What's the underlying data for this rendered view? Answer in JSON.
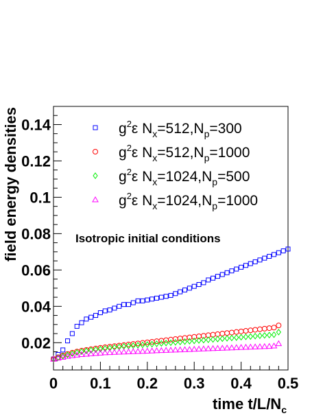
{
  "chart_data": {
    "type": "scatter",
    "xlabel": "time t/L/N",
    "xlabel_sub": "c",
    "ylabel": "field energy densities",
    "xlim": [
      0,
      0.5
    ],
    "ylim": [
      0.005,
      0.15
    ],
    "xticks": [
      "0",
      "0.1",
      "0.2",
      "0.3",
      "0.4",
      "0.5"
    ],
    "yticks": [
      "0.02",
      "0.04",
      "0.06",
      "0.08",
      "0.1",
      "0.12",
      "0.14"
    ],
    "annotation": "Isotropic initial conditions",
    "legend_position": "top",
    "series": [
      {
        "name": "g²ε N_x=512,N_p=300",
        "marker": "square",
        "color": "#0000ff",
        "lp": {
          "g": "g",
          "e": "ε N",
          "s1": "x",
          "m1": "=512,N",
          "s2": "p",
          "m2": "=300"
        },
        "x": [
          0.0,
          0.01,
          0.02,
          0.03,
          0.04,
          0.05,
          0.06,
          0.07,
          0.08,
          0.09,
          0.1,
          0.11,
          0.12,
          0.13,
          0.14,
          0.15,
          0.16,
          0.17,
          0.18,
          0.19,
          0.2,
          0.21,
          0.22,
          0.23,
          0.24,
          0.25,
          0.26,
          0.27,
          0.28,
          0.29,
          0.3,
          0.31,
          0.32,
          0.33,
          0.34,
          0.35,
          0.36,
          0.37,
          0.38,
          0.39,
          0.4,
          0.41,
          0.42,
          0.43,
          0.44,
          0.45,
          0.46,
          0.47,
          0.48,
          0.49,
          0.5
        ],
        "y": [
          0.011,
          0.0135,
          0.016,
          0.021,
          0.025,
          0.029,
          0.031,
          0.033,
          0.034,
          0.035,
          0.0365,
          0.0375,
          0.038,
          0.039,
          0.04,
          0.041,
          0.041,
          0.042,
          0.043,
          0.043,
          0.0435,
          0.044,
          0.0445,
          0.045,
          0.0455,
          0.046,
          0.047,
          0.048,
          0.049,
          0.05,
          0.051,
          0.052,
          0.053,
          0.0545,
          0.0555,
          0.0565,
          0.0575,
          0.0585,
          0.0595,
          0.0605,
          0.0615,
          0.0625,
          0.0635,
          0.0645,
          0.0655,
          0.0665,
          0.0675,
          0.0685,
          0.0695,
          0.0705,
          0.0715
        ]
      },
      {
        "name": "g²ε N_x=512,N_p=1000",
        "marker": "circle",
        "color": "#ff0000",
        "lp": {
          "g": "g",
          "e": "ε N",
          "s1": "x",
          "m1": "=512,N",
          "s2": "p",
          "m2": "=1000"
        },
        "x": [
          0.0,
          0.01,
          0.02,
          0.03,
          0.04,
          0.05,
          0.06,
          0.07,
          0.08,
          0.09,
          0.1,
          0.11,
          0.12,
          0.13,
          0.14,
          0.15,
          0.16,
          0.17,
          0.18,
          0.19,
          0.2,
          0.21,
          0.22,
          0.23,
          0.24,
          0.25,
          0.26,
          0.27,
          0.28,
          0.29,
          0.3,
          0.31,
          0.32,
          0.33,
          0.34,
          0.35,
          0.36,
          0.37,
          0.38,
          0.39,
          0.4,
          0.41,
          0.42,
          0.43,
          0.44,
          0.45,
          0.46,
          0.47,
          0.48
        ],
        "y": [
          0.011,
          0.012,
          0.013,
          0.0138,
          0.0145,
          0.0151,
          0.0156,
          0.016,
          0.0164,
          0.0168,
          0.0172,
          0.0175,
          0.0178,
          0.0181,
          0.0184,
          0.0187,
          0.019,
          0.0193,
          0.0196,
          0.0199,
          0.0202,
          0.0205,
          0.0208,
          0.0211,
          0.0214,
          0.0217,
          0.022,
          0.0223,
          0.0226,
          0.0229,
          0.0232,
          0.0235,
          0.0238,
          0.0241,
          0.0244,
          0.0247,
          0.025,
          0.0253,
          0.0256,
          0.0259,
          0.0262,
          0.0265,
          0.0268,
          0.0271,
          0.0274,
          0.0277,
          0.028,
          0.0283,
          0.0295
        ]
      },
      {
        "name": "g²ε N_x=1024,N_p=500",
        "marker": "diamond",
        "color": "#00ee00",
        "lp": {
          "g": "g",
          "e": "ε N",
          "s1": "x",
          "m1": "=1024,N",
          "s2": "p",
          "m2": "=500"
        },
        "x": [
          0.0,
          0.01,
          0.02,
          0.03,
          0.04,
          0.05,
          0.06,
          0.07,
          0.08,
          0.09,
          0.1,
          0.11,
          0.12,
          0.13,
          0.14,
          0.15,
          0.16,
          0.17,
          0.18,
          0.19,
          0.2,
          0.21,
          0.22,
          0.23,
          0.24,
          0.25,
          0.26,
          0.27,
          0.28,
          0.29,
          0.3,
          0.31,
          0.32,
          0.33,
          0.34,
          0.35,
          0.36,
          0.37,
          0.38,
          0.39,
          0.4,
          0.41,
          0.42,
          0.43,
          0.44,
          0.45,
          0.46,
          0.47,
          0.48
        ],
        "y": [
          0.011,
          0.0118,
          0.0126,
          0.0133,
          0.014,
          0.0146,
          0.0151,
          0.0155,
          0.0159,
          0.0162,
          0.0165,
          0.0168,
          0.0171,
          0.0174,
          0.0177,
          0.018,
          0.0182,
          0.0184,
          0.0186,
          0.0188,
          0.019,
          0.0192,
          0.0194,
          0.0196,
          0.0198,
          0.02,
          0.0202,
          0.0204,
          0.0206,
          0.0208,
          0.021,
          0.0212,
          0.0214,
          0.0216,
          0.0218,
          0.022,
          0.0222,
          0.0224,
          0.0226,
          0.0228,
          0.023,
          0.0232,
          0.0234,
          0.0236,
          0.0238,
          0.024,
          0.0242,
          0.0244,
          0.0258
        ]
      },
      {
        "name": "g²ε N_x=1024,N_p=1000",
        "marker": "triangle",
        "color": "#ff00ff",
        "lp": {
          "g": "g",
          "e": "ε N",
          "s1": "x",
          "m1": "=1024,N",
          "s2": "p",
          "m2": "=1000"
        },
        "x": [
          0.0,
          0.01,
          0.02,
          0.03,
          0.04,
          0.05,
          0.06,
          0.07,
          0.08,
          0.09,
          0.1,
          0.11,
          0.12,
          0.13,
          0.14,
          0.15,
          0.16,
          0.17,
          0.18,
          0.19,
          0.2,
          0.21,
          0.22,
          0.23,
          0.24,
          0.25,
          0.26,
          0.27,
          0.28,
          0.29,
          0.3,
          0.31,
          0.32,
          0.33,
          0.34,
          0.35,
          0.36,
          0.37,
          0.38,
          0.39,
          0.4,
          0.41,
          0.42,
          0.43,
          0.44,
          0.45,
          0.46,
          0.47,
          0.48
        ],
        "y": [
          0.011,
          0.0115,
          0.012,
          0.0125,
          0.0129,
          0.0132,
          0.0135,
          0.0137,
          0.0139,
          0.0141,
          0.0143,
          0.0145,
          0.0146,
          0.0147,
          0.0148,
          0.0149,
          0.015,
          0.0151,
          0.0152,
          0.0153,
          0.0154,
          0.0155,
          0.0156,
          0.0157,
          0.0158,
          0.0159,
          0.016,
          0.0161,
          0.0162,
          0.0163,
          0.0164,
          0.0165,
          0.0166,
          0.0167,
          0.0168,
          0.0169,
          0.017,
          0.0171,
          0.0172,
          0.0173,
          0.0174,
          0.0175,
          0.0176,
          0.0177,
          0.0178,
          0.0179,
          0.018,
          0.0182,
          0.0195
        ]
      }
    ]
  }
}
